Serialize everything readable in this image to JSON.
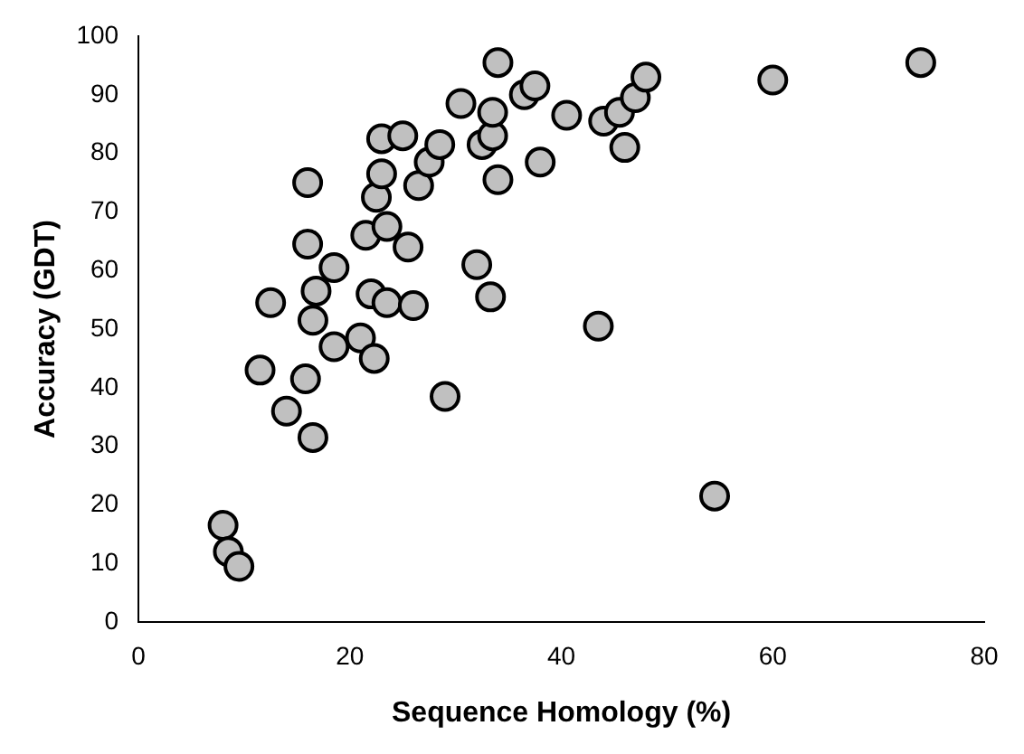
{
  "chart_data": {
    "type": "scatter",
    "xlabel": "Sequence Homology (%)",
    "ylabel": "Accuracy (GDT)",
    "x": [
      8,
      8.5,
      9.5,
      11.5,
      12.5,
      14,
      15.8,
      16,
      16,
      16.5,
      16.5,
      16.8,
      18.5,
      18.5,
      21,
      21.5,
      22,
      22.3,
      22.5,
      23,
      23,
      23.5,
      23.5,
      25,
      25.5,
      26,
      26.5,
      27.5,
      28.5,
      29,
      30.5,
      32,
      32.5,
      33.3,
      33.5,
      33.5,
      34,
      34,
      36.5,
      37.5,
      38,
      40.5,
      43.5,
      44,
      45.5,
      46,
      47,
      48,
      54.5,
      60,
      74
    ],
    "values": [
      16.5,
      12,
      9.5,
      43,
      54.5,
      36,
      41.5,
      75,
      64.5,
      31.5,
      51.5,
      56.5,
      47,
      60.5,
      48.5,
      66,
      56,
      45,
      72.5,
      76.5,
      82.5,
      67.5,
      54.5,
      83,
      64,
      54,
      74.5,
      78.5,
      81.5,
      38.5,
      88.5,
      61,
      81.5,
      55.5,
      83,
      87,
      75.5,
      95.5,
      90,
      91.5,
      78.5,
      86.5,
      50.5,
      85.5,
      87,
      81,
      89.5,
      93,
      21.5,
      92.5,
      95.5
    ],
    "color": "#c0c0c0",
    "marker": "circle",
    "xlim": [
      0,
      80
    ],
    "xticks": [
      0,
      20,
      40,
      60,
      80
    ],
    "ylim": [
      0,
      100
    ],
    "yticks": [
      0,
      10,
      20,
      30,
      40,
      50,
      60,
      70,
      80,
      90,
      100
    ],
    "grid": false,
    "legend": false
  }
}
